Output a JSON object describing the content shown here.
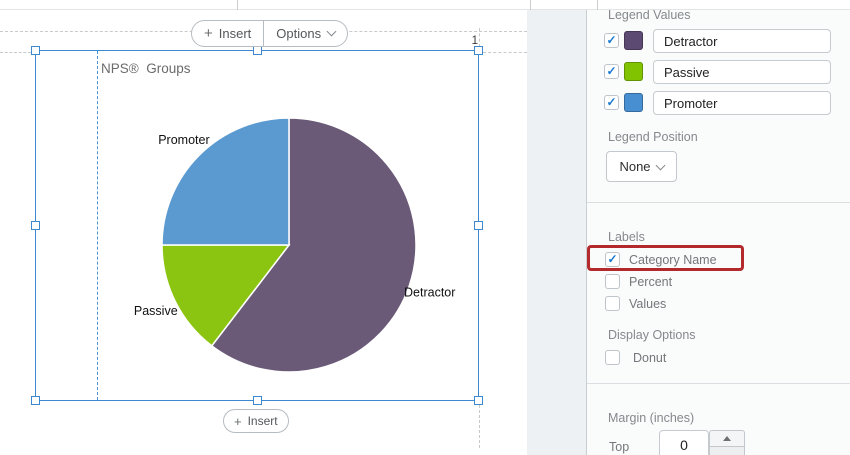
{
  "page": {
    "number": "1"
  },
  "toolbar": {
    "plus": "+",
    "insert_label": "Insert",
    "options_label": "Options"
  },
  "bottom_toolbar": {
    "plus": "+",
    "insert_label": "Insert"
  },
  "chart_data": {
    "type": "pie",
    "title": "NPS®  Groups",
    "categories": [
      "Detractor",
      "Passive",
      "Promoter"
    ],
    "values": [
      60.4,
      14.6,
      25.0
    ],
    "unit": "percent_of_whole",
    "colors": [
      "#6a5a78",
      "#8cc412",
      "#5b9ad0"
    ],
    "start_angle_deg": 0,
    "direction": "clockwise",
    "slice_labels": "category name only",
    "legend_position": "none",
    "label_color": "#111111"
  },
  "panel": {
    "legend_values": {
      "heading": "Legend Values",
      "items": [
        {
          "label": "Detractor",
          "checked": true,
          "swatch_color": "#5c4a72"
        },
        {
          "label": "Passive",
          "checked": true,
          "swatch_color": "#82c300"
        },
        {
          "label": "Promoter",
          "checked": true,
          "swatch_color": "#478fd0"
        }
      ]
    },
    "legend_position": {
      "heading": "Legend Position",
      "selected": "None"
    },
    "labels_section": {
      "heading": "Labels",
      "options": [
        {
          "label": "Category Name",
          "checked": true,
          "highlighted": true
        },
        {
          "label": "Percent",
          "checked": false,
          "highlighted": false
        },
        {
          "label": "Values",
          "checked": false,
          "highlighted": false
        }
      ],
      "highlight_color": "#b3292c"
    },
    "display_options": {
      "heading": "Display Options",
      "options": [
        {
          "label": "Donut",
          "checked": false
        }
      ]
    },
    "margin": {
      "heading": "Margin (inches)",
      "rows": [
        {
          "label": "Top",
          "value": "0"
        }
      ]
    }
  }
}
